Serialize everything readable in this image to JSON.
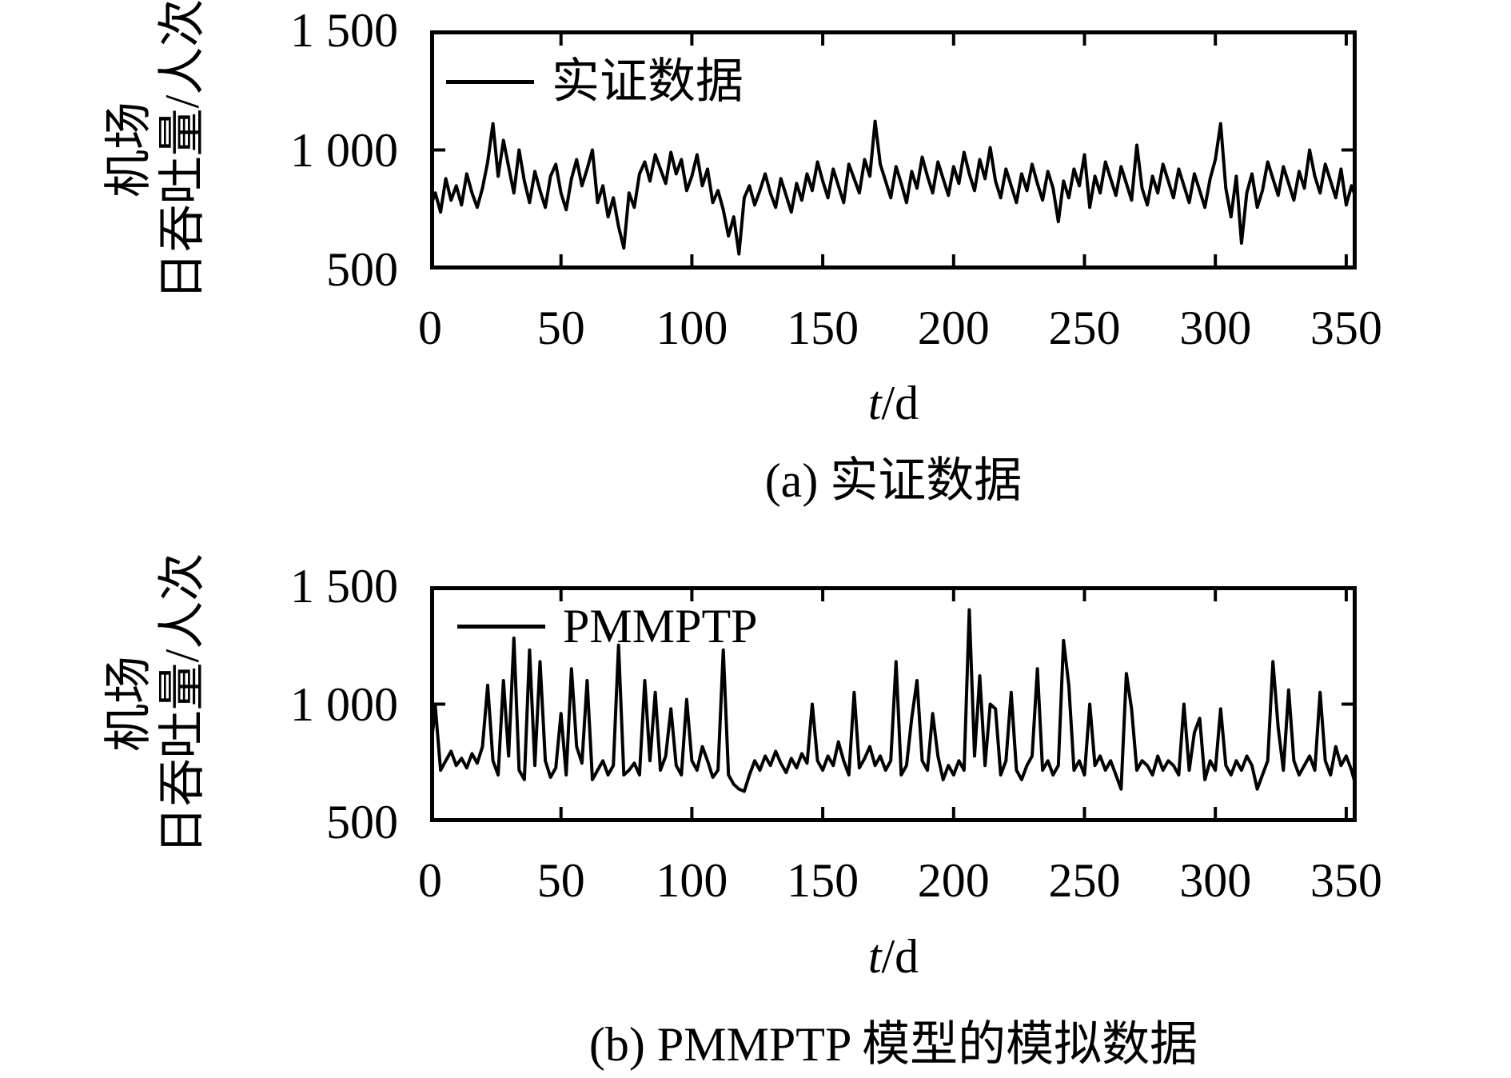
{
  "figure": {
    "background": "#ffffff",
    "ink_color": "#000000"
  },
  "chart_data": [
    {
      "type": "line",
      "caption": "(a) 实证数据",
      "legend": [
        "实证数据"
      ],
      "legend_position": "top-left-inside",
      "xlabel_italic": "t",
      "xlabel_rest": "/d",
      "ylabel_line1": "机场",
      "ylabel_line2": "日吞吐量/人次",
      "grid": false,
      "line_color": "#000000",
      "xlim": [
        0,
        354
      ],
      "ylim": [
        500,
        1500
      ],
      "xticks": [
        0,
        50,
        100,
        150,
        200,
        250,
        300,
        350
      ],
      "xtick_labels": [
        "0",
        "50",
        "100",
        "150",
        "200",
        "250",
        "300",
        "350"
      ],
      "yticks": [
        1500,
        1000,
        500
      ],
      "ytick_labels": [
        "1 500",
        "1 000",
        "500"
      ],
      "x_start": 0,
      "x_step": 2,
      "values": [
        760,
        820,
        740,
        880,
        790,
        850,
        770,
        900,
        820,
        760,
        840,
        950,
        1110,
        890,
        1040,
        930,
        820,
        1000,
        870,
        780,
        910,
        830,
        760,
        890,
        940,
        820,
        750,
        880,
        960,
        850,
        920,
        1000,
        780,
        850,
        720,
        800,
        680,
        590,
        820,
        760,
        900,
        950,
        870,
        980,
        920,
        860,
        990,
        900,
        960,
        830,
        890,
        980,
        850,
        920,
        780,
        830,
        750,
        640,
        720,
        565,
        800,
        850,
        770,
        830,
        900,
        820,
        760,
        880,
        810,
        740,
        860,
        790,
        900,
        830,
        950,
        870,
        800,
        920,
        850,
        780,
        940,
        880,
        820,
        960,
        890,
        1120,
        940,
        870,
        800,
        930,
        860,
        780,
        910,
        840,
        970,
        890,
        820,
        950,
        880,
        810,
        930,
        860,
        990,
        900,
        830,
        960,
        880,
        1010,
        870,
        800,
        920,
        850,
        780,
        900,
        830,
        940,
        860,
        790,
        910,
        840,
        700,
        870,
        800,
        920,
        850,
        980,
        760,
        890,
        820,
        950,
        880,
        810,
        930,
        860,
        790,
        1020,
        840,
        770,
        890,
        820,
        940,
        870,
        800,
        920,
        850,
        780,
        900,
        830,
        760,
        880,
        960,
        1110,
        840,
        720,
        890,
        610,
        820,
        900,
        760,
        830,
        950,
        880,
        810,
        930,
        860,
        790,
        910,
        840,
        1000,
        890,
        820,
        940,
        870,
        800,
        920,
        770,
        850,
        790
      ]
    },
    {
      "type": "line",
      "caption": "(b) PMMPTP 模型的模拟数据",
      "legend": [
        "PMMPTP"
      ],
      "legend_position": "top-left-inside",
      "xlabel_italic": "t",
      "xlabel_rest": "/d",
      "ylabel_line1": "机场",
      "ylabel_line2": "日吞吐量/人次",
      "grid": false,
      "line_color": "#000000",
      "xlim": [
        0,
        354
      ],
      "ylim": [
        500,
        1500
      ],
      "xticks": [
        0,
        50,
        100,
        150,
        200,
        250,
        300,
        350
      ],
      "xtick_labels": [
        "0",
        "50",
        "100",
        "150",
        "200",
        "250",
        "300",
        "350"
      ],
      "yticks": [
        1500,
        1000,
        500
      ],
      "ytick_labels": [
        "1 500",
        "1 000",
        "500"
      ],
      "x_start": 0,
      "x_step": 2,
      "values": [
        780,
        990,
        720,
        760,
        800,
        740,
        770,
        730,
        790,
        750,
        820,
        1080,
        760,
        700,
        1100,
        780,
        1280,
        720,
        680,
        1230,
        740,
        1180,
        760,
        690,
        730,
        960,
        700,
        1150,
        820,
        750,
        1100,
        680,
        720,
        760,
        700,
        740,
        1250,
        700,
        720,
        750,
        700,
        1100,
        760,
        1050,
        720,
        780,
        980,
        740,
        700,
        1020,
        760,
        720,
        820,
        760,
        690,
        720,
        1230,
        700,
        660,
        640,
        630,
        700,
        760,
        720,
        780,
        740,
        800,
        750,
        710,
        770,
        730,
        790,
        750,
        1000,
        760,
        720,
        780,
        740,
        840,
        760,
        700,
        1050,
        730,
        770,
        820,
        740,
        780,
        720,
        760,
        1180,
        700,
        740,
        940,
        1100,
        760,
        720,
        960,
        780,
        680,
        740,
        700,
        760,
        720,
        1400,
        780,
        1120,
        740,
        1000,
        980,
        700,
        760,
        1050,
        720,
        680,
        740,
        780,
        1150,
        720,
        760,
        700,
        740,
        1270,
        1080,
        720,
        760,
        700,
        1000,
        740,
        780,
        720,
        760,
        700,
        640,
        1130,
        980,
        720,
        760,
        740,
        700,
        780,
        720,
        760,
        740,
        700,
        1000,
        720,
        880,
        940,
        680,
        760,
        720,
        980,
        740,
        700,
        760,
        720,
        780,
        740,
        640,
        700,
        760,
        1180,
        900,
        720,
        1060,
        760,
        700,
        740,
        780,
        720,
        1050,
        760,
        700,
        820,
        740,
        780,
        720,
        640
      ]
    }
  ]
}
